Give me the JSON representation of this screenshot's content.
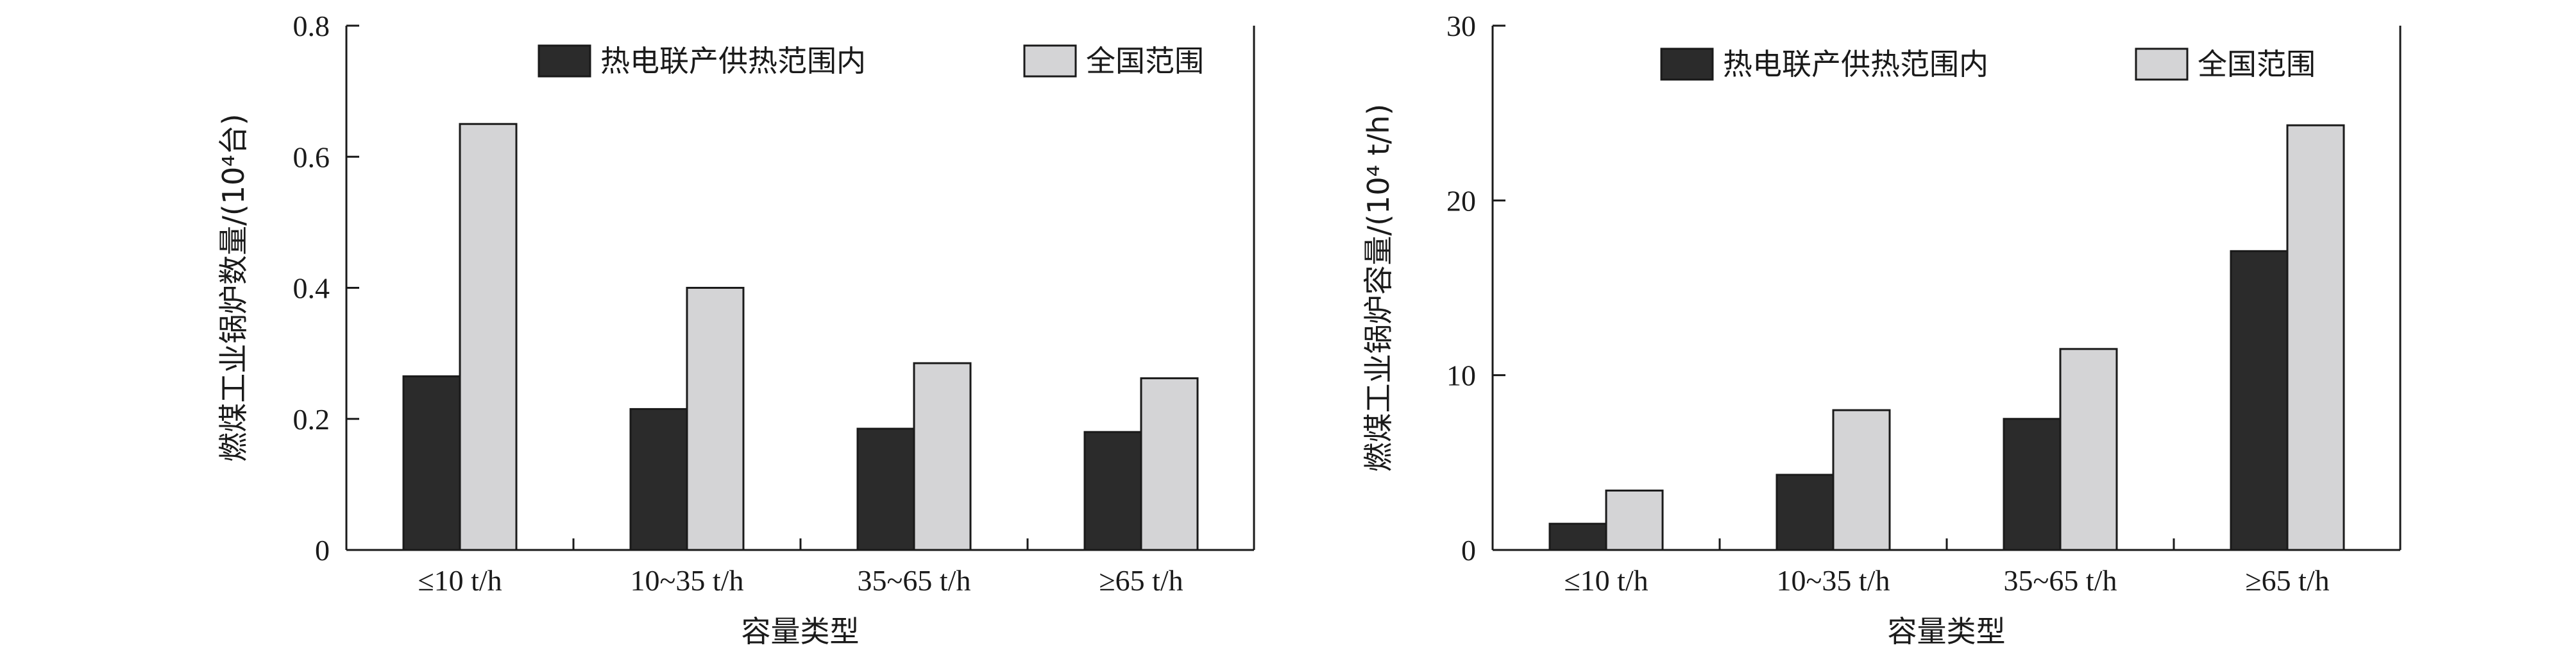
{
  "chart_data": [
    {
      "type": "bar",
      "categories": [
        "≤10 t/h",
        "10~35 t/h",
        "35~65 t/h",
        "≥65 t/h"
      ],
      "series": [
        {
          "name": "热电联产供热范围内",
          "values": [
            0.265,
            0.215,
            0.185,
            0.18
          ],
          "color": "#2b2b2b"
        },
        {
          "name": "全国范围",
          "values": [
            0.65,
            0.4,
            0.285,
            0.262
          ],
          "color": "#d4d4d6"
        }
      ],
      "xlabel": "容量类型",
      "ylabel": "燃煤工业锅炉数量/(10⁴台)",
      "ylim": [
        0,
        0.8
      ],
      "yticks": [
        0,
        0.2,
        0.4,
        0.6,
        0.8
      ],
      "ytick_labels": [
        "0",
        "0.2",
        "0.4",
        "0.6",
        "0.8"
      ],
      "legend": "top-right",
      "grid": false
    },
    {
      "type": "bar",
      "categories": [
        "≤10 t/h",
        "10~35 t/h",
        "35~65 t/h",
        "≥65 t/h"
      ],
      "series": [
        {
          "name": "热电联产供热范围内",
          "values": [
            1.5,
            4.3,
            7.5,
            17.1
          ],
          "color": "#2b2b2b"
        },
        {
          "name": "全国范围",
          "values": [
            3.4,
            8.0,
            11.5,
            24.3
          ],
          "color": "#d4d4d6"
        }
      ],
      "xlabel": "容量类型",
      "ylabel": "燃煤工业锅炉容量/(10⁴ t/h)",
      "ylim": [
        0,
        30
      ],
      "yticks": [
        0,
        10,
        20,
        30
      ],
      "ytick_labels": [
        "0",
        "10",
        "20",
        "30"
      ],
      "legend": "top-right",
      "grid": false
    }
  ]
}
